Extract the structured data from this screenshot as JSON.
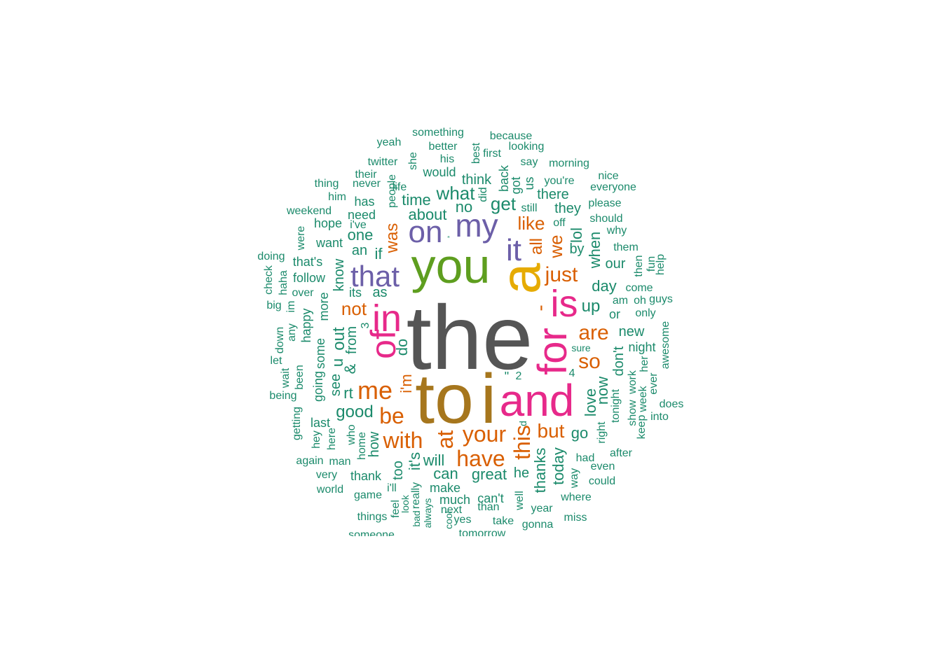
{
  "palette": {
    "green": "#1b8a6b",
    "orange": "#d95f02",
    "purple": "#6c5fa8",
    "pink": "#e7298a",
    "olive": "#5e9e1f",
    "gold": "#e6ab02",
    "brown": "#a6761d",
    "gray": "#555555"
  },
  "words": [
    {
      "text": "the",
      "c": "gray",
      "s": 130,
      "v": false
    },
    {
      "text": "to",
      "c": "brown",
      "s": 100,
      "v": false
    },
    {
      "text": "i",
      "c": "brown",
      "s": 100,
      "v": false
    },
    {
      "text": "you",
      "c": "olive",
      "s": 70,
      "v": false
    },
    {
      "text": "a",
      "c": "gold",
      "s": 80,
      "v": true
    },
    {
      "text": "and",
      "c": "pink",
      "s": 64,
      "v": false
    },
    {
      "text": "for",
      "c": "pink",
      "s": 58,
      "v": true
    },
    {
      "text": "is",
      "c": "pink",
      "s": 54,
      "v": false
    },
    {
      "text": "in",
      "c": "pink",
      "s": 54,
      "v": false
    },
    {
      "text": "of",
      "c": "pink",
      "s": 50,
      "v": true
    },
    {
      "text": "my",
      "c": "purple",
      "s": 46,
      "v": false
    },
    {
      "text": "on",
      "c": "purple",
      "s": 44,
      "v": false
    },
    {
      "text": "it",
      "c": "purple",
      "s": 44,
      "v": false
    },
    {
      "text": "that",
      "c": "purple",
      "s": 42,
      "v": false
    },
    {
      "text": "me",
      "c": "orange",
      "s": 36,
      "v": false
    },
    {
      "text": "your",
      "c": "orange",
      "s": 32,
      "v": false
    },
    {
      "text": "have",
      "c": "orange",
      "s": 32,
      "v": false
    },
    {
      "text": "with",
      "c": "orange",
      "s": 32,
      "v": false
    },
    {
      "text": "be",
      "c": "orange",
      "s": 32,
      "v": false
    },
    {
      "text": "at",
      "c": "orange",
      "s": 32,
      "v": true
    },
    {
      "text": "this",
      "c": "orange",
      "s": 32,
      "v": true
    },
    {
      "text": "are",
      "c": "orange",
      "s": 30,
      "v": false
    },
    {
      "text": "so",
      "c": "orange",
      "s": 30,
      "v": false
    },
    {
      "text": "just",
      "c": "orange",
      "s": 30,
      "v": false
    },
    {
      "text": "but",
      "c": "orange",
      "s": 28,
      "v": false
    },
    {
      "text": "not",
      "c": "orange",
      "s": 26,
      "v": false
    },
    {
      "text": "like",
      "c": "orange",
      "s": 26,
      "v": false
    },
    {
      "text": "we",
      "c": "orange",
      "s": 26,
      "v": true
    },
    {
      "text": "all",
      "c": "orange",
      "s": 24,
      "v": true
    },
    {
      "text": "was",
      "c": "orange",
      "s": 24,
      "v": true
    },
    {
      "text": "i'm",
      "c": "orange",
      "s": 22,
      "v": true
    },
    {
      "text": "-",
      "c": "orange",
      "s": 28,
      "v": true
    },
    {
      "text": "what",
      "c": "green",
      "s": 26,
      "v": false
    },
    {
      "text": "get",
      "c": "green",
      "s": 26,
      "v": false
    },
    {
      "text": "good",
      "c": "green",
      "s": 24,
      "v": false
    },
    {
      "text": "about",
      "c": "green",
      "s": 22,
      "v": false
    },
    {
      "text": "time",
      "c": "green",
      "s": 22,
      "v": false
    },
    {
      "text": "out",
      "c": "green",
      "s": 24,
      "v": true
    },
    {
      "text": "from",
      "c": "green",
      "s": 20,
      "v": true
    },
    {
      "text": "&",
      "c": "green",
      "s": 22,
      "v": true
    },
    {
      "text": "u",
      "c": "green",
      "s": 22,
      "v": true
    },
    {
      "text": "rt",
      "c": "green",
      "s": 22,
      "v": false
    },
    {
      "text": "see",
      "c": "green",
      "s": 20,
      "v": true
    },
    {
      "text": "do",
      "c": "green",
      "s": 22,
      "v": true
    },
    {
      "text": "if",
      "c": "green",
      "s": 22,
      "v": false
    },
    {
      "text": "an",
      "c": "green",
      "s": 20,
      "v": false
    },
    {
      "text": "one",
      "c": "green",
      "s": 22,
      "v": false
    },
    {
      "text": "know",
      "c": "green",
      "s": 20,
      "v": true
    },
    {
      "text": "no",
      "c": "green",
      "s": 22,
      "v": false
    },
    {
      "text": "think",
      "c": "green",
      "s": 20,
      "v": false
    },
    {
      "text": "there",
      "c": "green",
      "s": 20,
      "v": false
    },
    {
      "text": "they",
      "c": "green",
      "s": 20,
      "v": false
    },
    {
      "text": "lol",
      "c": "green",
      "s": 22,
      "v": true
    },
    {
      "text": "by",
      "c": "green",
      "s": 20,
      "v": false
    },
    {
      "text": "when",
      "c": "green",
      "s": 22,
      "v": true
    },
    {
      "text": "day",
      "c": "green",
      "s": 22,
      "v": false
    },
    {
      "text": "up",
      "c": "green",
      "s": 24,
      "v": false
    },
    {
      "text": "our",
      "c": "green",
      "s": 20,
      "v": false
    },
    {
      "text": "new",
      "c": "green",
      "s": 20,
      "v": false
    },
    {
      "text": "night",
      "c": "green",
      "s": 18,
      "v": false
    },
    {
      "text": "don't",
      "c": "green",
      "s": 20,
      "v": true
    },
    {
      "text": "love",
      "c": "green",
      "s": 22,
      "v": true
    },
    {
      "text": "now",
      "c": "green",
      "s": 22,
      "v": true
    },
    {
      "text": "go",
      "c": "green",
      "s": 22,
      "v": false
    },
    {
      "text": "today",
      "c": "green",
      "s": 22,
      "v": true
    },
    {
      "text": "thanks",
      "c": "green",
      "s": 22,
      "v": true
    },
    {
      "text": "great",
      "c": "green",
      "s": 22,
      "v": false
    },
    {
      "text": "can",
      "c": "green",
      "s": 22,
      "v": false
    },
    {
      "text": "will",
      "c": "green",
      "s": 22,
      "v": false
    },
    {
      "text": "it's",
      "c": "green",
      "s": 22,
      "v": true
    },
    {
      "text": "how",
      "c": "green",
      "s": 20,
      "v": true
    },
    {
      "text": "too",
      "c": "green",
      "s": 20,
      "v": true
    },
    {
      "text": "he",
      "c": "green",
      "s": 20,
      "v": false
    },
    {
      "text": "going",
      "c": "green",
      "s": 18,
      "v": true
    },
    {
      "text": "some",
      "c": "green",
      "s": 18,
      "v": true
    },
    {
      "text": "more",
      "c": "green",
      "s": 18,
      "v": true
    },
    {
      "text": "happy",
      "c": "green",
      "s": 18,
      "v": true
    },
    {
      "text": "been",
      "c": "green",
      "s": 16,
      "v": true
    },
    {
      "text": "last",
      "c": "green",
      "s": 18,
      "v": false
    },
    {
      "text": "as",
      "c": "green",
      "s": 20,
      "v": false
    },
    {
      "text": "its",
      "c": "green",
      "s": 18,
      "v": false
    },
    {
      "text": "want",
      "c": "green",
      "s": 18,
      "v": false
    },
    {
      "text": "need",
      "c": "green",
      "s": 18,
      "v": false
    },
    {
      "text": "has",
      "c": "green",
      "s": 18,
      "v": false
    },
    {
      "text": "would",
      "c": "green",
      "s": 18,
      "v": false
    },
    {
      "text": "people",
      "c": "green",
      "s": 16,
      "v": true
    },
    {
      "text": "his",
      "c": "green",
      "s": 16,
      "v": false
    },
    {
      "text": "better",
      "c": "green",
      "s": 16,
      "v": false
    },
    {
      "text": "something",
      "c": "green",
      "s": 16,
      "v": false
    },
    {
      "text": "because",
      "c": "green",
      "s": 16,
      "v": false
    },
    {
      "text": "looking",
      "c": "green",
      "s": 16,
      "v": false
    },
    {
      "text": "best",
      "c": "green",
      "s": 16,
      "v": true
    },
    {
      "text": "first",
      "c": "green",
      "s": 16,
      "v": false
    },
    {
      "text": "say",
      "c": "green",
      "s": 16,
      "v": false
    },
    {
      "text": "morning",
      "c": "green",
      "s": 16,
      "v": false
    },
    {
      "text": "back",
      "c": "green",
      "s": 18,
      "v": true
    },
    {
      "text": "got",
      "c": "green",
      "s": 18,
      "v": true
    },
    {
      "text": "us",
      "c": "green",
      "s": 18,
      "v": true
    },
    {
      "text": "did",
      "c": "green",
      "s": 16,
      "v": true
    },
    {
      "text": "you're",
      "c": "green",
      "s": 16,
      "v": false
    },
    {
      "text": "still",
      "c": "green",
      "s": 16,
      "v": false
    },
    {
      "text": "off",
      "c": "green",
      "s": 16,
      "v": false
    },
    {
      "text": "nice",
      "c": "green",
      "s": 16,
      "v": false
    },
    {
      "text": "everyone",
      "c": "green",
      "s": 16,
      "v": false
    },
    {
      "text": "please",
      "c": "green",
      "s": 16,
      "v": false
    },
    {
      "text": "should",
      "c": "green",
      "s": 16,
      "v": false
    },
    {
      "text": "why",
      "c": "green",
      "s": 16,
      "v": false
    },
    {
      "text": "them",
      "c": "green",
      "s": 16,
      "v": false
    },
    {
      "text": "then",
      "c": "green",
      "s": 16,
      "v": true
    },
    {
      "text": "fun",
      "c": "green",
      "s": 16,
      "v": true
    },
    {
      "text": "help",
      "c": "green",
      "s": 16,
      "v": true
    },
    {
      "text": "come",
      "c": "green",
      "s": 16,
      "v": false
    },
    {
      "text": "am",
      "c": "green",
      "s": 16,
      "v": false
    },
    {
      "text": "oh",
      "c": "green",
      "s": 16,
      "v": false
    },
    {
      "text": "guys",
      "c": "green",
      "s": 16,
      "v": false
    },
    {
      "text": "or",
      "c": "green",
      "s": 18,
      "v": false
    },
    {
      "text": "only",
      "c": "green",
      "s": 16,
      "v": false
    },
    {
      "text": "awesome",
      "c": "green",
      "s": 16,
      "v": true
    },
    {
      "text": "sure",
      "c": "green",
      "s": 14,
      "v": false
    },
    {
      "text": "work",
      "c": "green",
      "s": 16,
      "v": true
    },
    {
      "text": "her",
      "c": "green",
      "s": 16,
      "v": true
    },
    {
      "text": "week",
      "c": "green",
      "s": 16,
      "v": true
    },
    {
      "text": "ever",
      "c": "green",
      "s": 16,
      "v": true
    },
    {
      "text": "show",
      "c": "green",
      "s": 16,
      "v": true
    },
    {
      "text": "keep",
      "c": "green",
      "s": 16,
      "v": true
    },
    {
      "text": "tonight",
      "c": "green",
      "s": 16,
      "v": true
    },
    {
      "text": "right",
      "c": "green",
      "s": 16,
      "v": true
    },
    {
      "text": "does",
      "c": "green",
      "s": 16,
      "v": false
    },
    {
      "text": "into",
      "c": "green",
      "s": 16,
      "v": false
    },
    {
      "text": "after",
      "c": "green",
      "s": 16,
      "v": false
    },
    {
      "text": "had",
      "c": "green",
      "s": 16,
      "v": false
    },
    {
      "text": "even",
      "c": "green",
      "s": 16,
      "v": false
    },
    {
      "text": "could",
      "c": "green",
      "s": 16,
      "v": false
    },
    {
      "text": "way",
      "c": "green",
      "s": 16,
      "v": true
    },
    {
      "text": "where",
      "c": "green",
      "s": 16,
      "v": false
    },
    {
      "text": "miss",
      "c": "green",
      "s": 16,
      "v": false
    },
    {
      "text": "year",
      "c": "green",
      "s": 16,
      "v": false
    },
    {
      "text": "well",
      "c": "green",
      "s": 16,
      "v": true
    },
    {
      "text": "gonna",
      "c": "green",
      "s": 16,
      "v": false
    },
    {
      "text": "take",
      "c": "green",
      "s": 16,
      "v": false
    },
    {
      "text": "than",
      "c": "green",
      "s": 16,
      "v": false
    },
    {
      "text": "can't",
      "c": "green",
      "s": 18,
      "v": false
    },
    {
      "text": "much",
      "c": "green",
      "s": 18,
      "v": false
    },
    {
      "text": "make",
      "c": "green",
      "s": 18,
      "v": false
    },
    {
      "text": "next",
      "c": "green",
      "s": 16,
      "v": false
    },
    {
      "text": "yes",
      "c": "green",
      "s": 16,
      "v": false
    },
    {
      "text": "tomorrow",
      "c": "green",
      "s": 16,
      "v": false
    },
    {
      "text": "really",
      "c": "green",
      "s": 16,
      "v": true
    },
    {
      "text": "always",
      "c": "green",
      "s": 14,
      "v": true
    },
    {
      "text": "cool",
      "c": "green",
      "s": 14,
      "v": true
    },
    {
      "text": "bad",
      "c": "green",
      "s": 14,
      "v": true
    },
    {
      "text": "i'll",
      "c": "green",
      "s": 16,
      "v": false
    },
    {
      "text": "feel",
      "c": "green",
      "s": 16,
      "v": true
    },
    {
      "text": "look",
      "c": "green",
      "s": 14,
      "v": true
    },
    {
      "text": "thank",
      "c": "green",
      "s": 18,
      "v": false
    },
    {
      "text": "game",
      "c": "green",
      "s": 16,
      "v": false
    },
    {
      "text": "things",
      "c": "green",
      "s": 16,
      "v": false
    },
    {
      "text": "someone",
      "c": "green",
      "s": 16,
      "v": false
    },
    {
      "text": "home",
      "c": "green",
      "s": 16,
      "v": true
    },
    {
      "text": "who",
      "c": "green",
      "s": 16,
      "v": true
    },
    {
      "text": "here",
      "c": "green",
      "s": 16,
      "v": true
    },
    {
      "text": "man",
      "c": "green",
      "s": 16,
      "v": false
    },
    {
      "text": "again",
      "c": "green",
      "s": 16,
      "v": false
    },
    {
      "text": "very",
      "c": "green",
      "s": 16,
      "v": false
    },
    {
      "text": "world",
      "c": "green",
      "s": 16,
      "v": false
    },
    {
      "text": "hey",
      "c": "green",
      "s": 16,
      "v": true
    },
    {
      "text": "getting",
      "c": "green",
      "s": 16,
      "v": true
    },
    {
      "text": "being",
      "c": "green",
      "s": 16,
      "v": false
    },
    {
      "text": "wait",
      "c": "green",
      "s": 16,
      "v": true
    },
    {
      "text": "let",
      "c": "green",
      "s": 16,
      "v": false
    },
    {
      "text": "down",
      "c": "green",
      "s": 16,
      "v": true
    },
    {
      "text": "any",
      "c": "green",
      "s": 16,
      "v": true
    },
    {
      "text": "im",
      "c": "green",
      "s": 16,
      "v": true
    },
    {
      "text": "big",
      "c": "green",
      "s": 16,
      "v": false
    },
    {
      "text": "check",
      "c": "green",
      "s": 16,
      "v": true
    },
    {
      "text": "haha",
      "c": "green",
      "s": 16,
      "v": true
    },
    {
      "text": "over",
      "c": "green",
      "s": 16,
      "v": false
    },
    {
      "text": "follow",
      "c": "green",
      "s": 18,
      "v": false
    },
    {
      "text": "that's",
      "c": "green",
      "s": 18,
      "v": false
    },
    {
      "text": "doing",
      "c": "green",
      "s": 16,
      "v": false
    },
    {
      "text": "were",
      "c": "green",
      "s": 16,
      "v": true
    },
    {
      "text": "weekend",
      "c": "green",
      "s": 16,
      "v": false
    },
    {
      "text": "hope",
      "c": "green",
      "s": 18,
      "v": false
    },
    {
      "text": "i've",
      "c": "green",
      "s": 16,
      "v": false
    },
    {
      "text": "him",
      "c": "green",
      "s": 16,
      "v": false
    },
    {
      "text": "thing",
      "c": "green",
      "s": 16,
      "v": false
    },
    {
      "text": "never",
      "c": "green",
      "s": 16,
      "v": false
    },
    {
      "text": "their",
      "c": "green",
      "s": 16,
      "v": false
    },
    {
      "text": "life",
      "c": "green",
      "s": 16,
      "v": false
    },
    {
      "text": "twitter",
      "c": "green",
      "s": 16,
      "v": false
    },
    {
      "text": "yeah",
      "c": "green",
      "s": 16,
      "v": false
    },
    {
      "text": "she",
      "c": "green",
      "s": 16,
      "v": true
    },
    {
      "text": "3",
      "c": "green",
      "s": 16,
      "v": true
    },
    {
      "text": "2",
      "c": "green",
      "s": 16,
      "v": false
    },
    {
      "text": "4",
      "c": "green",
      "s": 16,
      "v": false
    },
    {
      "text": "d",
      "c": "green",
      "s": 14,
      "v": true
    },
    {
      "text": "\"",
      "c": "green",
      "s": 18,
      "v": false
    },
    {
      "text": "“",
      "c": "green",
      "s": 10,
      "v": false
    }
  ]
}
